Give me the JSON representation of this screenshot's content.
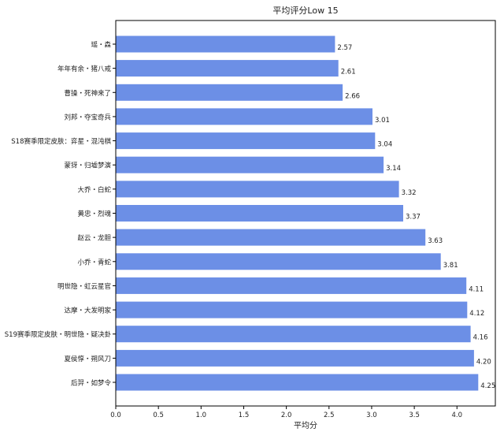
{
  "chart_data": {
    "type": "bar",
    "orientation": "horizontal",
    "title": "平均评分Low 15",
    "xlabel": "平均分",
    "ylabel": "",
    "xlim": [
      0,
      4.45
    ],
    "xticks": [
      "0.0",
      "0.5",
      "1.0",
      "1.5",
      "2.0",
      "2.5",
      "3.0",
      "3.5",
      "4.0"
    ],
    "grid": false,
    "bar_color": "#6c8fe6",
    "categories": [
      "瑶・森",
      "年年有余・猪八戒",
      "曹操・死神来了",
      "刘邦・夺宝奇兵",
      "S18赛季限定皮肤：弈星・混沌棋",
      "蒙犽・归墟梦演",
      "大乔・白蛇",
      "黄忠・烈魂",
      "赵云・龙胆",
      "小乔・青蛇",
      "明世隐・虹云星官",
      "达摩・大发明家",
      "S19赛季限定皮肤・明世隐・疑决卦",
      "夏侯惇・朔风刀",
      "后羿・如梦令"
    ],
    "values": [
      2.57,
      2.61,
      2.66,
      3.01,
      3.04,
      3.14,
      3.32,
      3.37,
      3.63,
      3.81,
      4.11,
      4.12,
      4.16,
      4.2,
      4.25
    ],
    "value_labels": [
      "2.57",
      "2.61",
      "2.66",
      "3.01",
      "3.04",
      "3.14",
      "3.32",
      "3.37",
      "3.63",
      "3.81",
      "4.11",
      "4.12",
      "4.16",
      "4.20",
      "4.25"
    ]
  }
}
